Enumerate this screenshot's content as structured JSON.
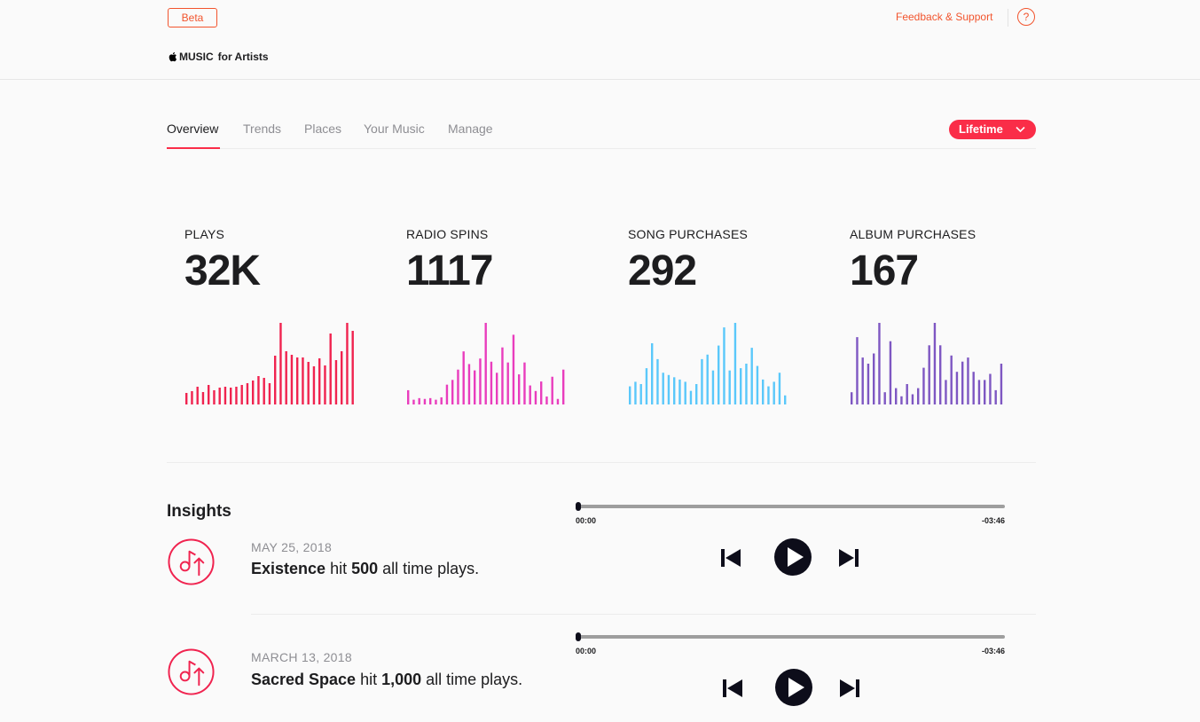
{
  "header": {
    "beta_label": "Beta",
    "logo_music": "MUSIC",
    "logo_suffix": "for Artists",
    "feedback_label": "Feedback & Support",
    "help_label": "?"
  },
  "tabs": [
    {
      "label": "Overview",
      "active": true
    },
    {
      "label": "Trends",
      "active": false
    },
    {
      "label": "Places",
      "active": false
    },
    {
      "label": "Your Music",
      "active": false
    },
    {
      "label": "Manage",
      "active": false
    }
  ],
  "period_select": {
    "label": "Lifetime"
  },
  "colors": {
    "accent": "#fa2d48",
    "orange": "#f2542d",
    "plays": "#f0234f",
    "radio": "#e93dbd",
    "songs": "#5ac8fa",
    "albums": "#7e57c2"
  },
  "stats": [
    {
      "label": "PLAYS",
      "value": "32K",
      "spark": [
        13,
        15,
        20,
        14,
        22,
        16,
        19,
        20,
        19,
        20,
        22,
        24,
        27,
        32,
        30,
        24,
        55,
        92,
        60,
        56,
        53,
        53,
        48,
        43,
        52,
        44,
        80,
        50,
        60,
        92,
        83
      ]
    },
    {
      "label": "RADIO SPINS",
      "value": "1117",
      "spark": [
        18,
        6,
        8,
        7,
        8,
        6,
        9,
        25,
        31,
        44,
        67,
        51,
        43,
        58,
        103,
        54,
        40,
        72,
        53,
        88,
        38,
        53,
        24,
        17,
        29,
        10,
        35,
        7,
        44
      ]
    },
    {
      "label": "SONG PURCHASES",
      "value": "292",
      "spark": [
        8,
        10,
        9,
        16,
        27,
        20,
        14,
        13,
        12,
        11,
        10,
        6,
        9,
        20,
        22,
        15,
        26,
        34,
        15,
        36,
        16,
        18,
        25,
        17,
        11,
        8,
        10,
        14,
        4
      ]
    },
    {
      "label": "ALBUM PURCHASES",
      "value": "167",
      "spark": [
        6,
        33,
        23,
        20,
        25,
        40,
        6,
        31,
        8,
        4,
        10,
        5,
        8,
        18,
        29,
        40,
        29,
        12,
        24,
        16,
        21,
        23,
        16,
        12,
        12,
        15,
        7,
        20
      ]
    }
  ],
  "insights": {
    "title": "Insights",
    "items": [
      {
        "date": "MAY 25, 2018",
        "song": "Existence",
        "mid": " hit ",
        "count": "500",
        "tail": " all time plays.",
        "time_start": "00:00",
        "time_end": "-03:46"
      },
      {
        "date": "MARCH 13, 2018",
        "song": "Sacred Space",
        "mid": " hit ",
        "count": "1,000",
        "tail": " all time plays.",
        "time_start": "00:00",
        "time_end": "-03:46"
      }
    ]
  }
}
